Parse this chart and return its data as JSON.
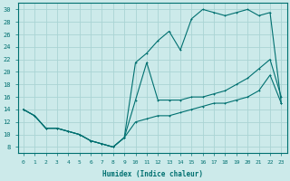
{
  "xlabel": "Humidex (Indice chaleur)",
  "xlim": [
    -0.5,
    23.5
  ],
  "ylim": [
    7,
    31
  ],
  "yticks": [
    8,
    10,
    12,
    14,
    16,
    18,
    20,
    22,
    24,
    26,
    28,
    30
  ],
  "xticks": [
    0,
    1,
    2,
    3,
    4,
    5,
    6,
    7,
    8,
    9,
    10,
    11,
    12,
    13,
    14,
    15,
    16,
    17,
    18,
    19,
    20,
    21,
    22,
    23
  ],
  "bg_color": "#cceaea",
  "line_color": "#007070",
  "grid_color": "#aad4d4",
  "line1_x": [
    0,
    1,
    2,
    3,
    4,
    5,
    6,
    7,
    8,
    9,
    10,
    11,
    12,
    13,
    14,
    15,
    16,
    17,
    18,
    19,
    20,
    21,
    22,
    23
  ],
  "line1_y": [
    14,
    13,
    11,
    11,
    10.5,
    10,
    9,
    8.5,
    8,
    9.5,
    12,
    12.5,
    13,
    13,
    13.5,
    14,
    14.5,
    15,
    15,
    15.5,
    16,
    17,
    19.5,
    15
  ],
  "line2_x": [
    0,
    1,
    2,
    3,
    4,
    5,
    6,
    7,
    8,
    9,
    10,
    11,
    12,
    13,
    14,
    15,
    16,
    17,
    18,
    19,
    20,
    21,
    22,
    23
  ],
  "line2_y": [
    14,
    13,
    11,
    11,
    10.5,
    10,
    9,
    8.5,
    8,
    9.5,
    15.5,
    21.5,
    15.5,
    15.5,
    15.5,
    16,
    16,
    16.5,
    17,
    18,
    19,
    20.5,
    22,
    16
  ],
  "line3_x": [
    0,
    1,
    2,
    3,
    4,
    5,
    6,
    7,
    8,
    9,
    10,
    11,
    12,
    13,
    14,
    15,
    16,
    17,
    18,
    19,
    20,
    21,
    22,
    23
  ],
  "line3_y": [
    14,
    13,
    11,
    11,
    10.5,
    10,
    9,
    8.5,
    8,
    9.5,
    21.5,
    23,
    25,
    26.5,
    23.5,
    28.5,
    30,
    29.5,
    29,
    29.5,
    30,
    29,
    29.5,
    15
  ]
}
